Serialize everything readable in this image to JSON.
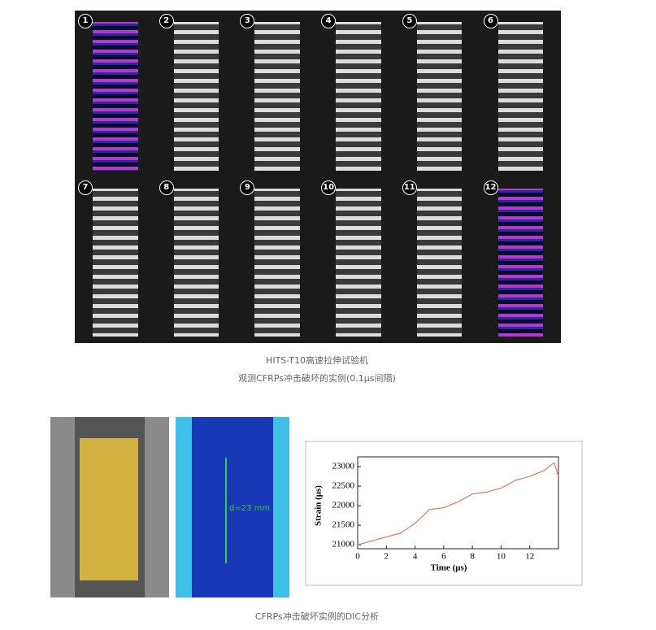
{
  "figure1": {
    "panels": [
      "1",
      "2",
      "3",
      "4",
      "5",
      "6",
      "7",
      "8",
      "9",
      "10",
      "11",
      "12"
    ],
    "caption": [
      "HITS-T10高速拉伸试验机",
      "观测CFRPs冲击破坏的实例(0.1μs间隔)"
    ]
  },
  "figure2": {
    "annotation": "d=23 mm",
    "chart": {
      "type": "line",
      "x_label": "Time (μs)",
      "y_label": "Strain (μs)",
      "x": [
        0,
        1,
        2,
        3,
        4,
        5,
        6,
        7,
        8,
        9,
        10,
        11,
        12,
        13,
        13.7,
        14
      ],
      "values": [
        21000,
        21100,
        21200,
        21300,
        21550,
        21900,
        21950,
        22100,
        22300,
        22350,
        22450,
        22650,
        22750,
        22900,
        23100,
        22750
      ],
      "color": "#e07a5f",
      "xlim": [
        0,
        14
      ],
      "xticks": [
        0,
        2,
        4,
        6,
        8,
        10,
        12
      ],
      "ylim": [
        20900,
        23250
      ],
      "yticks": [
        21000,
        21500,
        22000,
        22500,
        23000
      ]
    },
    "caption": "CFRPs冲击破坏实例的DIC分析"
  }
}
